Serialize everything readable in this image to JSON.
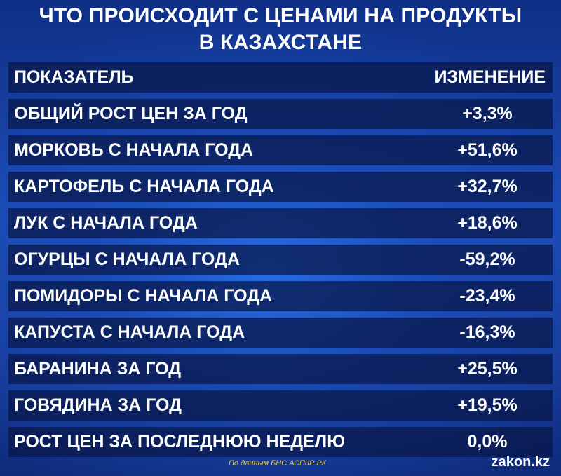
{
  "title": {
    "line1": "ЧТО ПРОИСХОДИТ С ЦЕНАМИ НА ПРОДУКТЫ",
    "line2": "В КАЗАХСТАНЕ"
  },
  "table": {
    "header": {
      "indicator": "ПОКАЗАТЕЛЬ",
      "change": "ИЗМЕНЕНИЕ"
    },
    "rows": [
      {
        "label": "ОБЩИЙ РОСТ ЦЕН ЗА ГОД",
        "value": "+3,3%"
      },
      {
        "label": "МОРКОВЬ С НАЧАЛА ГОДА",
        "value": "+51,6%"
      },
      {
        "label": "КАРТОФЕЛЬ С НАЧАЛА ГОДА",
        "value": "+32,7%"
      },
      {
        "label": "ЛУК С НАЧАЛА ГОДА",
        "value": "+18,6%"
      },
      {
        "label": "ОГУРЦЫ С НАЧАЛА ГОДА",
        "value": "-59,2%"
      },
      {
        "label": "ПОМИДОРЫ С НАЧАЛА ГОДА",
        "value": "-23,4%"
      },
      {
        "label": "КАПУСТА С НАЧАЛА ГОДА",
        "value": "-16,3%"
      },
      {
        "label": "БАРАНИНА ЗА ГОД",
        "value": "+25,5%"
      },
      {
        "label": "ГОВЯДИНА ЗА ГОД",
        "value": "+19,5%"
      },
      {
        "label": "РОСТ ЦЕН ЗА ПОСЛЕДНЮЮ НЕДЕЛЮ",
        "value": "0,0%"
      }
    ]
  },
  "footer": {
    "source": "По данным БНС АСПиР РК",
    "brand": "zakon.kz"
  },
  "colors": {
    "background": "#1d4bb3",
    "row_band": "#08164a",
    "text": "#ffffff",
    "source_text": "#e7c84a"
  }
}
